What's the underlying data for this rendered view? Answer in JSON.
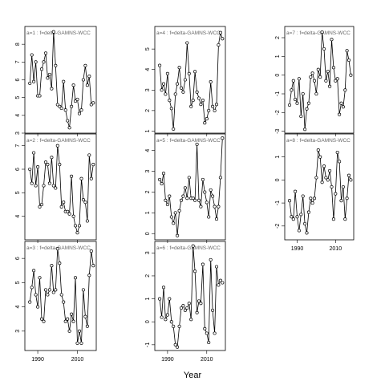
{
  "chart_data": {
    "type": "line",
    "xlabel": "Year",
    "x": [
      1986,
      1987,
      1988,
      1989,
      1990,
      1991,
      1992,
      1993,
      1994,
      1995,
      1996,
      1997,
      1998,
      1999,
      2000,
      2001,
      2002,
      2003,
      2004,
      2005,
      2006,
      2007,
      2008,
      2009,
      2010,
      2011,
      2012,
      2013,
      2014,
      2015,
      2016,
      2017,
      2018
    ],
    "xticks": [
      1990,
      2010
    ],
    "xlim": [
      1983.5,
      2019.5
    ],
    "panels": [
      {
        "title": "a=1  :  f=delta-GAMNS-WCC",
        "ylim": [
          3.0,
          9.0
        ],
        "yticks": [
          3,
          4,
          5,
          6,
          7,
          8
        ],
        "values": [
          5.8,
          7.4,
          5.9,
          7.0,
          5.1,
          5.1,
          6.6,
          7.0,
          7.5,
          6.1,
          6.3,
          5.5,
          8.7,
          6.8,
          4.6,
          4.5,
          4.4,
          5.9,
          4.3,
          3.7,
          3.3,
          4.5,
          5.7,
          4.8,
          4.9,
          4.1,
          4.3,
          6.0,
          6.8,
          5.7,
          6.2,
          4.6,
          4.7
        ]
      },
      {
        "title": "a=2  :  f=delta-GAMNS-WCC",
        "ylim": [
          3.0,
          7.5
        ],
        "yticks": [
          4,
          5,
          6,
          7
        ],
        "values": [
          6.0,
          5.4,
          6.7,
          5.3,
          6.1,
          4.4,
          4.5,
          5.3,
          6.3,
          6.2,
          5.4,
          6.5,
          5.3,
          5.2,
          7.0,
          6.2,
          4.4,
          4.6,
          4.2,
          4.2,
          4.1,
          5.7,
          4.0,
          3.6,
          3.3,
          3.6,
          5.6,
          4.7,
          4.6,
          3.8,
          6.6,
          5.6,
          6.2
        ]
      },
      {
        "title": "a=3  :  f=delta-GAMNS-WCC",
        "ylim": [
          2.2,
          6.7
        ],
        "yticks": [
          3,
          4,
          5,
          6
        ],
        "values": [
          4.2,
          4.8,
          5.5,
          4.5,
          4.0,
          5.2,
          3.5,
          3.4,
          4.7,
          4.5,
          4.7,
          5.7,
          4.6,
          4.7,
          6.4,
          5.8,
          4.5,
          4.2,
          3.4,
          3.5,
          3.0,
          3.7,
          3.4,
          5.2,
          2.5,
          3.0,
          2.5,
          4.7,
          3.6,
          3.2,
          5.3,
          6.3,
          5.7
        ]
      },
      {
        "title": "a=4  :  f=delta-GAMNS-WCC",
        "ylim": [
          0.9,
          6.1
        ],
        "yticks": [
          1,
          2,
          3,
          4,
          5
        ],
        "values": [
          4.2,
          3.0,
          3.3,
          2.8,
          3.8,
          2.5,
          2.1,
          1.1,
          2.8,
          3.3,
          4.1,
          3.1,
          2.9,
          3.5,
          5.3,
          3.8,
          2.2,
          2.5,
          3.9,
          2.9,
          2.6,
          2.3,
          2.5,
          1.4,
          1.6,
          2.0,
          3.4,
          2.2,
          2.0,
          2.3,
          5.2,
          5.8,
          5.5
        ]
      },
      {
        "title": "a=5  :  f=delta-GAMNS-WCC",
        "ylim": [
          -0.3,
          4.8
        ],
        "yticks": [
          0,
          1,
          2,
          3,
          4
        ],
        "values": [
          2.6,
          2.4,
          2.9,
          1.6,
          1.4,
          1.8,
          0.8,
          0.5,
          1.0,
          -0.1,
          1.1,
          1.6,
          1.8,
          2.2,
          1.7,
          2.7,
          1.7,
          1.7,
          1.6,
          4.3,
          1.6,
          1.3,
          2.6,
          2.0,
          1.5,
          0.8,
          2.1,
          1.8,
          1.3,
          0.7,
          1.3,
          2.7,
          4.6
        ]
      },
      {
        "title": "a=6  :  f=delta-GAMNS-WCC",
        "ylim": [
          -1.25,
          3.5
        ],
        "yticks": [
          -1,
          0,
          1,
          2,
          3
        ],
        "values": [
          1.0,
          0.2,
          1.5,
          0.1,
          0.3,
          1.0,
          0.0,
          -0.2,
          -1.0,
          -1.1,
          -0.2,
          0.6,
          0.7,
          0.5,
          0.6,
          0.8,
          0.1,
          3.3,
          2.2,
          0.4,
          0.9,
          0.8,
          2.5,
          -0.3,
          -0.5,
          -0.9,
          2.7,
          0.5,
          -0.5,
          2.4,
          1.6,
          1.8,
          1.7
        ]
      },
      {
        "title": "a=7  :  f=delta-GAMNS-WCC",
        "ylim": [
          -3.1,
          2.6
        ],
        "yticks": [
          -3,
          -2,
          -1,
          0,
          1,
          2
        ],
        "values": [
          -1.6,
          -0.8,
          -0.3,
          -1.3,
          -1.5,
          -0.2,
          -2.2,
          -1.0,
          -2.9,
          -1.8,
          -1.5,
          -0.1,
          0.1,
          -0.3,
          -1.0,
          0.3,
          -0.1,
          2.3,
          1.4,
          -0.3,
          0.2,
          -0.6,
          1.9,
          0.4,
          -0.3,
          -0.2,
          -2.1,
          -1.5,
          -1.7,
          -0.8,
          1.3,
          0.8,
          0.0
        ]
      },
      {
        "title": "a=8  :  f=delta-GAMNS-WCC",
        "ylim": [
          -2.6,
          2.0
        ],
        "yticks": [
          -2,
          -1,
          0,
          1
        ],
        "values": [
          -0.9,
          -1.6,
          -1.7,
          -0.5,
          -1.6,
          -2.2,
          -1.5,
          -0.7,
          -1.9,
          -2.3,
          -1.4,
          -0.8,
          -1.0,
          -0.8,
          0.1,
          1.3,
          1.0,
          -0.1,
          0.6,
          0.1,
          0.0,
          0.4,
          -0.3,
          -1.7,
          -0.6,
          1.2,
          0.8,
          -0.9,
          -0.3,
          -1.7,
          -0.8,
          0.2,
          0.0
        ]
      }
    ]
  }
}
